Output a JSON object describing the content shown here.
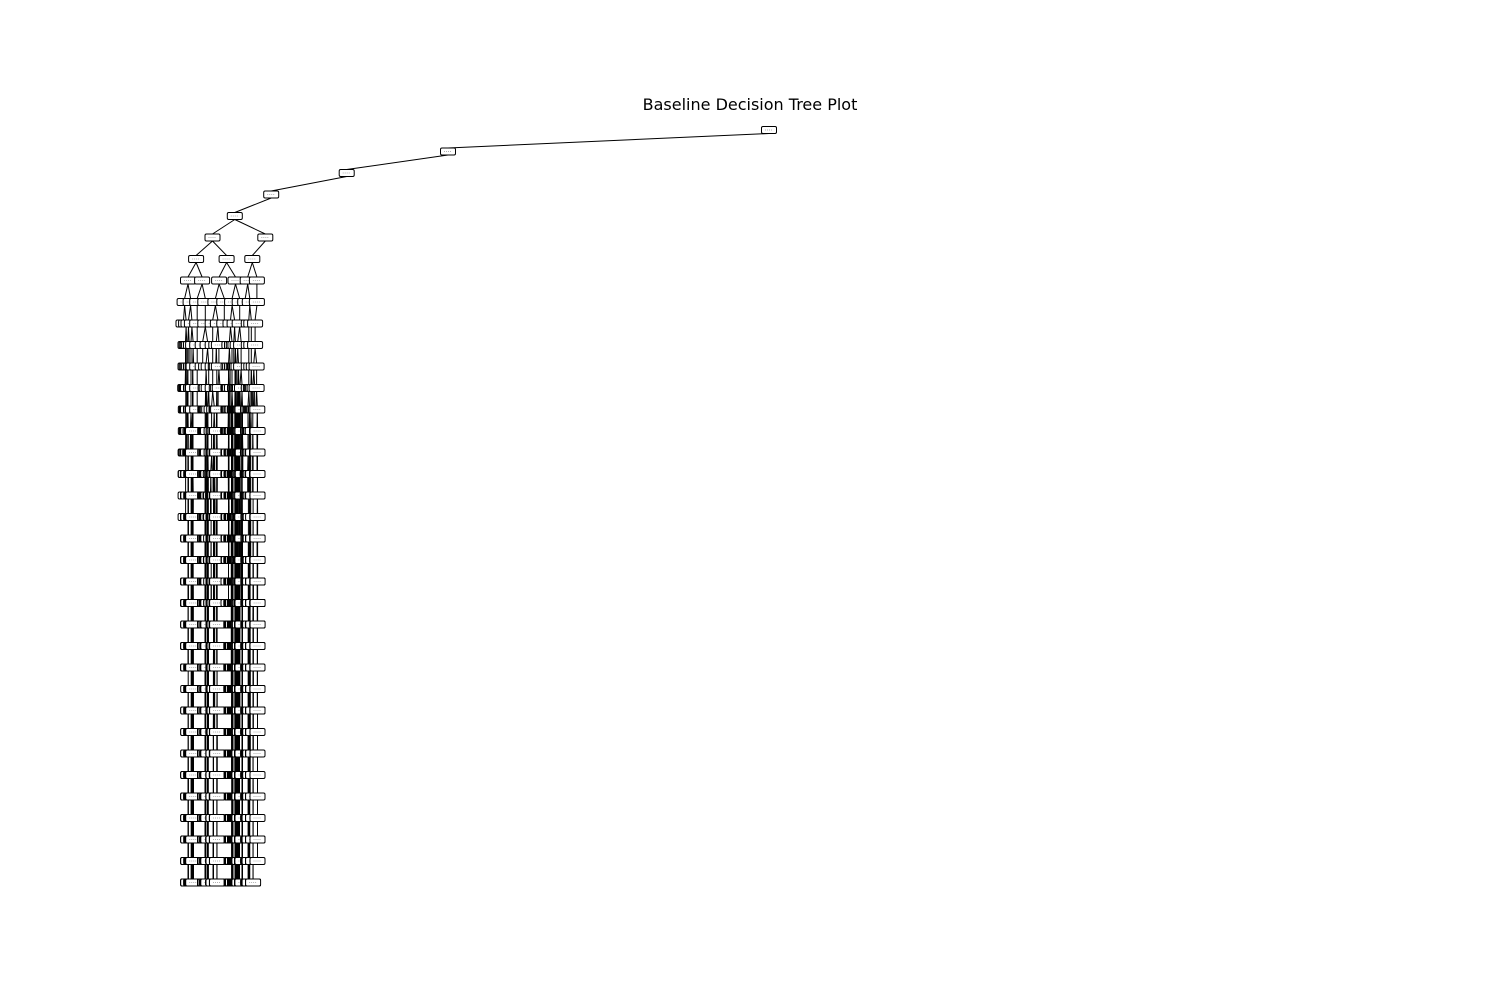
{
  "figure": {
    "title": "Baseline Decision Tree Plot"
  },
  "style": {
    "node_fill": "#ffffff",
    "node_stroke": "#000000",
    "edge_color": "#000000",
    "node_text_color": "#666666"
  }
}
